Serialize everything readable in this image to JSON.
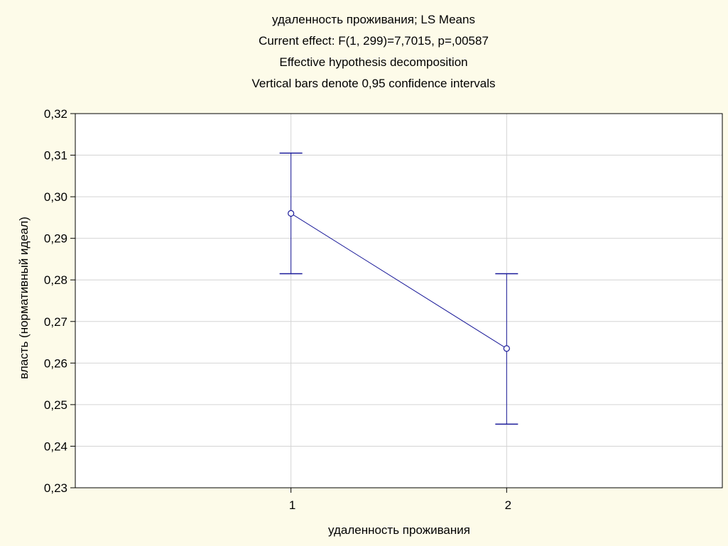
{
  "chart_data": {
    "type": "line",
    "title_lines": [
      "удаленность проживания; LS Means",
      "Current effect: F(1, 299)=7,7015, p=,00587",
      "Effective hypothesis decomposition",
      "Vertical bars denote 0,95 confidence intervals"
    ],
    "xlabel": "удаленность проживания",
    "ylabel": "власть (нормативный идеал)",
    "categories": [
      "1",
      "2"
    ],
    "xlim": [
      0,
      3
    ],
    "ylim": [
      0.23,
      0.32
    ],
    "yticks": [
      0.23,
      0.24,
      0.25,
      0.26,
      0.27,
      0.28,
      0.29,
      0.3,
      0.31,
      0.32
    ],
    "ytick_labels": [
      "0,23",
      "0,24",
      "0,25",
      "0,26",
      "0,27",
      "0,28",
      "0,29",
      "0,30",
      "0,31",
      "0,32"
    ],
    "series": [
      {
        "values": [
          0.296,
          0.2635
        ],
        "ci_lower": [
          0.2815,
          0.2453
        ],
        "ci_upper": [
          0.3105,
          0.2815
        ]
      }
    ],
    "grid": true,
    "line_color": "#1a1a99",
    "background": "#fdfbe9",
    "plot_background": "#ffffff",
    "grid_color": "#d4d4d4"
  }
}
